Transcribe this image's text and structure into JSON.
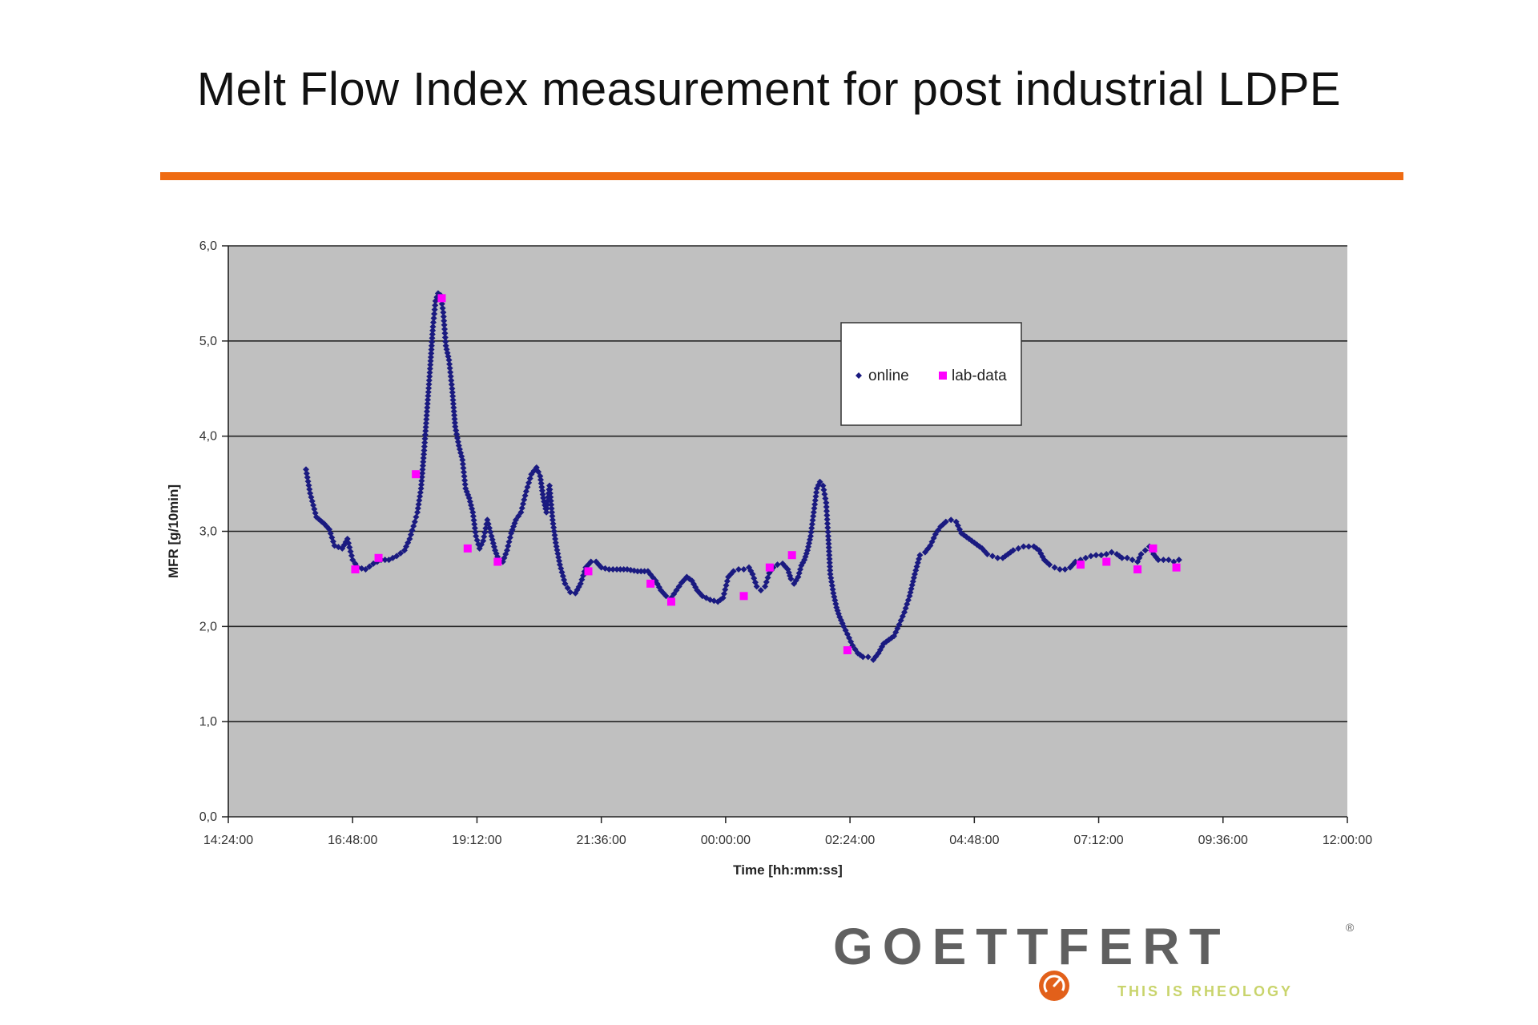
{
  "slide": {
    "title": "Melt Flow Index measurement for post industrial LDPE",
    "accent_color": "#ef6b12"
  },
  "brand": {
    "name": "GOETTFERT",
    "registered": "®",
    "tagline": "THIS IS RHEOLOGY",
    "logo_icon": "orange-gauge-icon",
    "text_color": "#606060",
    "tagline_color": "#c9d46c"
  },
  "chart_data": {
    "type": "scatter",
    "title": "",
    "xlabel": "Time [hh:mm:ss]",
    "ylabel": "MFR [g/10min]",
    "x_unit": "hours since 14:24:00",
    "xlim": [
      0,
      21.6
    ],
    "ylim": [
      0,
      6
    ],
    "yticks": [
      0,
      1,
      2,
      3,
      4,
      5,
      6
    ],
    "ytick_labels": [
      "0,0",
      "1,0",
      "2,0",
      "3,0",
      "4,0",
      "5,0",
      "6,0"
    ],
    "xticks": [
      0,
      2.4,
      4.8,
      7.2,
      9.6,
      12,
      14.4,
      16.8,
      19.2,
      21.6
    ],
    "xtick_labels": [
      "14:24:00",
      "16:48:00",
      "19:12:00",
      "21:36:00",
      "00:00:00",
      "02:24:00",
      "04:48:00",
      "07:12:00",
      "09:36:00",
      "12:00:00"
    ],
    "grid": true,
    "plot_bg": "#c0c0c0",
    "legend_position": "top-center",
    "series": [
      {
        "name": "online",
        "color": "#1a1a80",
        "marker": "diamond",
        "points": [
          [
            1.5,
            3.65
          ],
          [
            1.58,
            3.4
          ],
          [
            1.7,
            3.15
          ],
          [
            1.85,
            3.08
          ],
          [
            1.95,
            3.02
          ],
          [
            2.05,
            2.85
          ],
          [
            2.2,
            2.82
          ],
          [
            2.3,
            2.92
          ],
          [
            2.4,
            2.7
          ],
          [
            2.5,
            2.62
          ],
          [
            2.65,
            2.6
          ],
          [
            2.8,
            2.66
          ],
          [
            2.95,
            2.7
          ],
          [
            3.1,
            2.7
          ],
          [
            3.25,
            2.74
          ],
          [
            3.4,
            2.8
          ],
          [
            3.5,
            2.92
          ],
          [
            3.6,
            3.1
          ],
          [
            3.65,
            3.2
          ],
          [
            3.72,
            3.45
          ],
          [
            3.78,
            3.85
          ],
          [
            3.84,
            4.3
          ],
          [
            3.9,
            4.75
          ],
          [
            3.95,
            5.15
          ],
          [
            4.0,
            5.42
          ],
          [
            4.05,
            5.5
          ],
          [
            4.1,
            5.48
          ],
          [
            4.15,
            5.3
          ],
          [
            4.2,
            4.95
          ],
          [
            4.26,
            4.8
          ],
          [
            4.32,
            4.5
          ],
          [
            4.38,
            4.1
          ],
          [
            4.45,
            3.9
          ],
          [
            4.52,
            3.75
          ],
          [
            4.58,
            3.45
          ],
          [
            4.65,
            3.35
          ],
          [
            4.72,
            3.2
          ],
          [
            4.78,
            2.95
          ],
          [
            4.85,
            2.82
          ],
          [
            4.92,
            2.9
          ],
          [
            5.0,
            3.12
          ],
          [
            5.08,
            2.95
          ],
          [
            5.15,
            2.8
          ],
          [
            5.22,
            2.7
          ],
          [
            5.3,
            2.68
          ],
          [
            5.38,
            2.8
          ],
          [
            5.46,
            2.98
          ],
          [
            5.55,
            3.12
          ],
          [
            5.65,
            3.2
          ],
          [
            5.75,
            3.42
          ],
          [
            5.85,
            3.6
          ],
          [
            5.95,
            3.67
          ],
          [
            6.02,
            3.58
          ],
          [
            6.08,
            3.35
          ],
          [
            6.14,
            3.2
          ],
          [
            6.2,
            3.48
          ],
          [
            6.26,
            3.12
          ],
          [
            6.32,
            2.88
          ],
          [
            6.4,
            2.65
          ],
          [
            6.5,
            2.45
          ],
          [
            6.6,
            2.36
          ],
          [
            6.7,
            2.35
          ],
          [
            6.8,
            2.45
          ],
          [
            6.9,
            2.62
          ],
          [
            7.0,
            2.68
          ],
          [
            7.1,
            2.68
          ],
          [
            7.2,
            2.62
          ],
          [
            7.35,
            2.6
          ],
          [
            7.5,
            2.6
          ],
          [
            7.7,
            2.6
          ],
          [
            7.9,
            2.58
          ],
          [
            8.1,
            2.58
          ],
          [
            8.25,
            2.48
          ],
          [
            8.35,
            2.38
          ],
          [
            8.45,
            2.32
          ],
          [
            8.55,
            2.3
          ],
          [
            8.65,
            2.38
          ],
          [
            8.75,
            2.46
          ],
          [
            8.85,
            2.52
          ],
          [
            8.95,
            2.48
          ],
          [
            9.05,
            2.38
          ],
          [
            9.15,
            2.32
          ],
          [
            9.3,
            2.28
          ],
          [
            9.45,
            2.26
          ],
          [
            9.55,
            2.3
          ],
          [
            9.65,
            2.52
          ],
          [
            9.75,
            2.58
          ],
          [
            9.85,
            2.6
          ],
          [
            9.95,
            2.6
          ],
          [
            10.05,
            2.62
          ],
          [
            10.12,
            2.55
          ],
          [
            10.2,
            2.42
          ],
          [
            10.28,
            2.38
          ],
          [
            10.36,
            2.42
          ],
          [
            10.44,
            2.56
          ],
          [
            10.52,
            2.62
          ],
          [
            10.6,
            2.65
          ],
          [
            10.7,
            2.66
          ],
          [
            10.8,
            2.6
          ],
          [
            10.86,
            2.5
          ],
          [
            10.92,
            2.45
          ],
          [
            11.0,
            2.52
          ],
          [
            11.06,
            2.64
          ],
          [
            11.12,
            2.7
          ],
          [
            11.18,
            2.8
          ],
          [
            11.24,
            2.95
          ],
          [
            11.3,
            3.2
          ],
          [
            11.36,
            3.45
          ],
          [
            11.42,
            3.52
          ],
          [
            11.48,
            3.48
          ],
          [
            11.54,
            3.3
          ],
          [
            11.58,
            2.95
          ],
          [
            11.62,
            2.55
          ],
          [
            11.68,
            2.35
          ],
          [
            11.74,
            2.2
          ],
          [
            11.8,
            2.1
          ],
          [
            11.88,
            2.0
          ],
          [
            11.95,
            1.92
          ],
          [
            12.05,
            1.8
          ],
          [
            12.15,
            1.72
          ],
          [
            12.25,
            1.68
          ],
          [
            12.35,
            1.68
          ],
          [
            12.45,
            1.65
          ],
          [
            12.55,
            1.72
          ],
          [
            12.65,
            1.82
          ],
          [
            12.75,
            1.86
          ],
          [
            12.85,
            1.9
          ],
          [
            12.95,
            2.02
          ],
          [
            13.05,
            2.15
          ],
          [
            13.15,
            2.32
          ],
          [
            13.25,
            2.55
          ],
          [
            13.35,
            2.75
          ],
          [
            13.45,
            2.78
          ],
          [
            13.55,
            2.85
          ],
          [
            13.65,
            2.97
          ],
          [
            13.75,
            3.05
          ],
          [
            13.85,
            3.1
          ],
          [
            13.95,
            3.12
          ],
          [
            14.05,
            3.1
          ],
          [
            14.15,
            2.98
          ],
          [
            14.25,
            2.94
          ],
          [
            14.35,
            2.9
          ],
          [
            14.45,
            2.86
          ],
          [
            14.55,
            2.82
          ],
          [
            14.65,
            2.76
          ],
          [
            14.75,
            2.74
          ],
          [
            14.85,
            2.72
          ],
          [
            14.95,
            2.72
          ],
          [
            15.05,
            2.76
          ],
          [
            15.15,
            2.8
          ],
          [
            15.25,
            2.82
          ],
          [
            15.35,
            2.84
          ],
          [
            15.45,
            2.84
          ],
          [
            15.55,
            2.84
          ],
          [
            15.65,
            2.8
          ],
          [
            15.75,
            2.7
          ],
          [
            15.85,
            2.65
          ],
          [
            15.95,
            2.62
          ],
          [
            16.05,
            2.6
          ],
          [
            16.15,
            2.6
          ],
          [
            16.25,
            2.62
          ],
          [
            16.35,
            2.68
          ],
          [
            16.45,
            2.7
          ],
          [
            16.55,
            2.72
          ],
          [
            16.65,
            2.74
          ],
          [
            16.75,
            2.75
          ],
          [
            16.85,
            2.75
          ],
          [
            16.95,
            2.76
          ],
          [
            17.05,
            2.78
          ],
          [
            17.15,
            2.76
          ],
          [
            17.25,
            2.72
          ],
          [
            17.35,
            2.72
          ],
          [
            17.45,
            2.7
          ],
          [
            17.55,
            2.68
          ],
          [
            17.62,
            2.76
          ],
          [
            17.7,
            2.8
          ],
          [
            17.78,
            2.84
          ],
          [
            17.86,
            2.76
          ],
          [
            17.95,
            2.7
          ],
          [
            18.05,
            2.7
          ],
          [
            18.15,
            2.7
          ],
          [
            18.25,
            2.68
          ],
          [
            18.35,
            2.7
          ]
        ]
      },
      {
        "name": "lab-data",
        "color": "#ff00ff",
        "marker": "square",
        "points": [
          [
            2.45,
            2.6
          ],
          [
            2.9,
            2.72
          ],
          [
            3.62,
            3.6
          ],
          [
            4.12,
            5.45
          ],
          [
            4.62,
            2.82
          ],
          [
            5.2,
            2.68
          ],
          [
            6.95,
            2.58
          ],
          [
            8.15,
            2.45
          ],
          [
            8.55,
            2.26
          ],
          [
            9.95,
            2.32
          ],
          [
            10.45,
            2.62
          ],
          [
            10.88,
            2.75
          ],
          [
            11.95,
            1.75
          ],
          [
            16.45,
            2.65
          ],
          [
            16.95,
            2.68
          ],
          [
            17.55,
            2.6
          ],
          [
            17.85,
            2.82
          ],
          [
            18.3,
            2.62
          ]
        ]
      }
    ]
  }
}
